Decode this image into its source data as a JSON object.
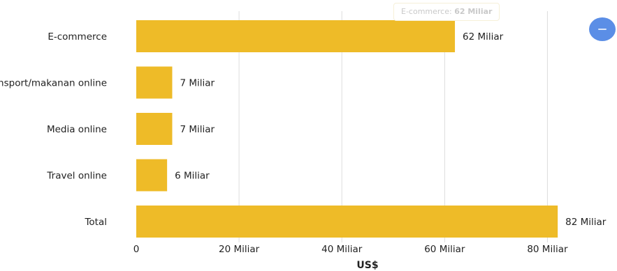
{
  "chart_data": {
    "type": "bar",
    "orientation": "horizontal",
    "categories": [
      "E-commerce",
      "Transport/makanan online",
      "Media online",
      "Travel online",
      "Total"
    ],
    "values": [
      62,
      7,
      7,
      6,
      82
    ],
    "value_labels": [
      "62 Miliar",
      "7 Miliar",
      "7 Miliar",
      "6 Miliar",
      "82 Miliar"
    ],
    "xlabel": "US$",
    "ylabel": "",
    "xlim": [
      0,
      90
    ],
    "x_ticks": [
      0,
      20,
      40,
      60,
      80
    ],
    "x_tick_labels": [
      "0",
      "20 Miliar",
      "40 Miliar",
      "60 Miliar",
      "80 Miliar"
    ],
    "grid": true,
    "bar_color": "#EEBB28",
    "tooltip": {
      "label": "E-commerce:",
      "value": "62 Miliar"
    }
  },
  "colors": {
    "button": "#5B8EE6",
    "grid": "#DDDDDD"
  },
  "icons": {
    "button": "minus-icon"
  }
}
